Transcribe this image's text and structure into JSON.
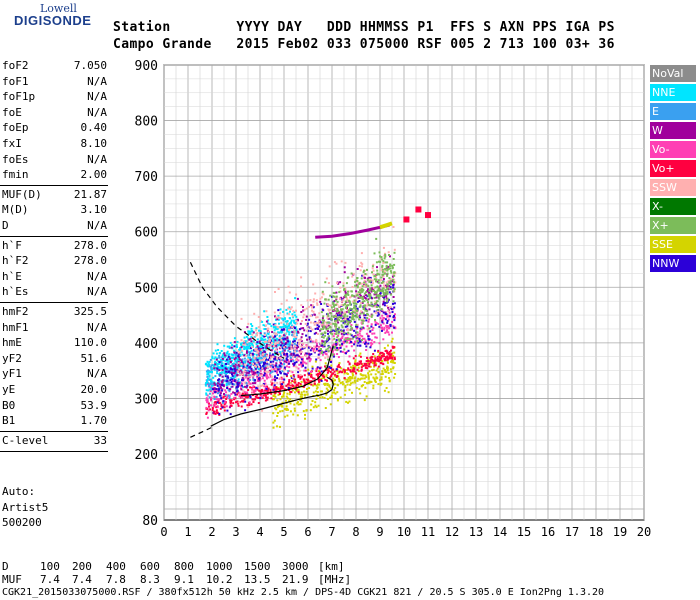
{
  "logo": {
    "top": "Lowell",
    "bottom": "DIGISONDE"
  },
  "header": {
    "line1": "Station        YYYY DAY   DDD HHMMSS P1  FFS S AXN PPS IGA PS",
    "line2": "Campo Grande   2015 Feb02 033 075000 RSF 005 2 713 100 03+ 36"
  },
  "params": [
    {
      "group": 1,
      "label": "foF2",
      "value": "7.050"
    },
    {
      "group": 1,
      "label": "foF1",
      "value": "N/A"
    },
    {
      "group": 1,
      "label": "foF1p",
      "value": "N/A"
    },
    {
      "group": 1,
      "label": "foE",
      "value": "N/A"
    },
    {
      "group": 1,
      "label": "foEp",
      "value": "0.40"
    },
    {
      "group": 1,
      "label": "fxI",
      "value": "8.10"
    },
    {
      "group": 1,
      "label": "foEs",
      "value": "N/A"
    },
    {
      "group": 1,
      "label": "fmin",
      "value": "2.00"
    },
    {
      "group": 2,
      "label": "MUF(D)",
      "value": "21.87"
    },
    {
      "group": 2,
      "label": "M(D)",
      "value": "3.10"
    },
    {
      "group": 2,
      "label": "D",
      "value": "N/A"
    },
    {
      "group": 3,
      "label": "h`F",
      "value": "278.0"
    },
    {
      "group": 3,
      "label": "h`F2",
      "value": "278.0"
    },
    {
      "group": 3,
      "label": "h`E",
      "value": "N/A"
    },
    {
      "group": 3,
      "label": "h`Es",
      "value": "N/A"
    },
    {
      "group": 4,
      "label": "hmF2",
      "value": "325.5"
    },
    {
      "group": 4,
      "label": "hmF1",
      "value": "N/A"
    },
    {
      "group": 4,
      "label": "hmE",
      "value": "110.0"
    },
    {
      "group": 4,
      "label": "yF2",
      "value": "51.6"
    },
    {
      "group": 4,
      "label": "yF1",
      "value": "N/A"
    },
    {
      "group": 4,
      "label": "yE",
      "value": "20.0"
    },
    {
      "group": 4,
      "label": "B0",
      "value": "53.9"
    },
    {
      "group": 4,
      "label": "B1",
      "value": "1.70"
    },
    {
      "group": 5,
      "label": "C-level",
      "value": "33"
    }
  ],
  "auto": {
    "line1": "Auto:",
    "line2": "Artist5",
    "line3": "500200"
  },
  "legend": [
    {
      "label": "NoVal",
      "color": "#8c8c8c"
    },
    {
      "label": "NNE",
      "color": "#00e5ff"
    },
    {
      "label": "E",
      "color": "#3aa0f0"
    },
    {
      "label": "W",
      "color": "#a0009c"
    },
    {
      "label": "Vo-",
      "color": "#ff3fb4"
    },
    {
      "label": "Vo+",
      "color": "#ff0040"
    },
    {
      "label": "SSW",
      "color": "#ffb0b0"
    },
    {
      "label": "X-",
      "color": "#007800"
    },
    {
      "label": "X+",
      "color": "#7cbc5a"
    },
    {
      "label": "SSE",
      "color": "#d4d400"
    },
    {
      "label": "NNW",
      "color": "#2c00d8"
    }
  ],
  "chart_data": {
    "type": "scatter",
    "title": "",
    "xlabel": "",
    "ylabel": "",
    "xlim": [
      0,
      20
    ],
    "ylim": [
      80,
      900
    ],
    "x_ticks": [
      0,
      1,
      2,
      3,
      4,
      5,
      6,
      7,
      8,
      9,
      10,
      11,
      12,
      13,
      14,
      15,
      16,
      17,
      18,
      19,
      20
    ],
    "x_tick_labels": [
      "0",
      "1",
      "2",
      "3",
      "4",
      "5",
      "6",
      "7",
      "8",
      "9",
      "10",
      "11",
      "12",
      "13",
      "14",
      "15",
      "16",
      "17",
      "18",
      "19",
      "20"
    ],
    "y_ticks": [
      80,
      200,
      300,
      400,
      500,
      600,
      700,
      800,
      900
    ],
    "y_tick_labels": [
      "80",
      "200",
      "300",
      "400",
      "500",
      "600",
      "700",
      "800",
      "900"
    ],
    "grid": true,
    "legend_position": "right",
    "point_clouds": [
      {
        "name": "SSE",
        "f_range": [
          4.5,
          9.6
        ],
        "h_center_at_fmin": 290,
        "h_slope": 15,
        "h_spread": 40
      },
      {
        "name": "Vo+",
        "f_range": [
          1.7,
          9.6
        ],
        "h_center_at_fmin": 280,
        "h_slope": 13,
        "h_spread": 15
      },
      {
        "name": "Vo-",
        "f_range": [
          1.7,
          9.6
        ],
        "h_center_at_fmin": 300,
        "h_slope": 18,
        "h_spread": 30
      },
      {
        "name": "E",
        "f_range": [
          1.7,
          5.5
        ],
        "h_center_at_fmin": 330,
        "h_slope": 20,
        "h_spread": 40
      },
      {
        "name": "NNE",
        "f_range": [
          1.7,
          5.5
        ],
        "h_center_at_fmin": 345,
        "h_slope": 25,
        "h_spread": 40
      },
      {
        "name": "W",
        "f_range": [
          2.0,
          9.6
        ],
        "h_center_at_fmin": 330,
        "h_slope": 24,
        "h_spread": 55
      },
      {
        "name": "NNW",
        "f_range": [
          2.0,
          9.6
        ],
        "h_center_at_fmin": 320,
        "h_slope": 20,
        "h_spread": 60
      },
      {
        "name": "SSW",
        "f_range": [
          3.0,
          9.6
        ],
        "h_center_at_fmin": 360,
        "h_slope": 25,
        "h_spread": 80
      },
      {
        "name": "X+",
        "f_range": [
          6.5,
          9.6
        ],
        "h_center_at_fmin": 420,
        "h_slope": 35,
        "h_spread": 60
      }
    ],
    "traces": {
      "o_trace_line": {
        "x": [
          6.3,
          7.0,
          7.8,
          8.5,
          9.0,
          9.4
        ],
        "y": [
          590,
          592,
          597,
          603,
          608,
          612
        ],
        "color": "#a0009c"
      },
      "x_trace_line": {
        "x": [
          9.0,
          9.3,
          9.5
        ],
        "y": [
          608,
          612,
          615
        ],
        "color": "#d4d400"
      },
      "x_blobs": [
        {
          "x": 10.1,
          "y": 622
        },
        {
          "x": 10.6,
          "y": 640
        },
        {
          "x": 11.0,
          "y": 630
        }
      ]
    },
    "profile_solid": {
      "x": [
        1.95,
        2.5,
        3.2,
        4.0,
        4.8,
        5.5,
        6.0,
        6.5,
        6.8,
        7.0,
        7.05,
        7.0,
        6.8
      ],
      "y": [
        250,
        262,
        272,
        280,
        289,
        297,
        302,
        306,
        310,
        316,
        325.5,
        333,
        338
      ]
    },
    "profile_dashed": {
      "x": [
        1.1,
        1.6,
        2.0
      ],
      "y": [
        230,
        240,
        248
      ]
    },
    "virtual_curve": {
      "x": [
        3.2,
        4.0,
        5.0,
        5.8,
        6.4,
        6.8,
        7.05
      ],
      "y": [
        305,
        308,
        314,
        322,
        335,
        355,
        395
      ]
    },
    "virtual_dashed_upper": {
      "x": [
        1.1,
        1.6,
        2.2,
        3.0,
        3.8,
        4.5,
        5.0
      ],
      "y": [
        545,
        500,
        465,
        430,
        405,
        385,
        372
      ]
    }
  },
  "footer": {
    "d_label": "D",
    "d_values": [
      "100",
      "200",
      "400",
      "600",
      "800",
      "1000",
      "1500",
      "3000"
    ],
    "d_unit": "[km]",
    "muf_label": "MUF",
    "muf_values": [
      "7.4",
      "7.4",
      "7.8",
      "8.3",
      "9.1",
      "10.2",
      "13.5",
      "21.9"
    ],
    "muf_unit": "[MHz]",
    "status": "CGK21_2015033075000.RSF / 380fx512h 50 kHz 2.5 km / DPS-4D CGK21 821 / 20.5 S 305.0 E Ion2Png 1.3.20"
  }
}
